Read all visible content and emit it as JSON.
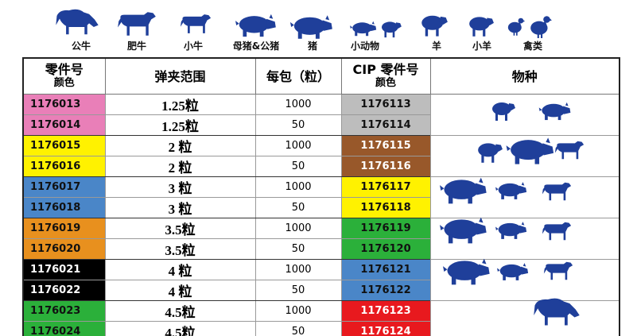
{
  "animals": [
    "公牛",
    "肥牛",
    "小牛",
    "母猪&公猪",
    "猪",
    "小动物",
    "羊",
    "小羊",
    "禽类"
  ],
  "table": {
    "headers": {
      "part": "零件号",
      "part_color": "颜色",
      "range": "弹夹范围",
      "pack": "每包（粒）",
      "cip": "CIP 零件号",
      "cip_color": "颜色",
      "species": "物种"
    },
    "rows": [
      {
        "part": "1176013",
        "color": "#e97fb8",
        "range": "1.25粒",
        "pack": 1000,
        "cip": "1176113",
        "cip_fill": "#bdbdbd"
      },
      {
        "part": "1176014",
        "color": "#e97fb8",
        "range": "1.25粒",
        "pack": 50,
        "cip": "1176114",
        "cip_fill": "#bdbdbd"
      },
      {
        "part": "1176015",
        "color": "#fff200",
        "range": "2 粒",
        "pack": 1000,
        "cip": "1176115",
        "cip_fill": "#98582a"
      },
      {
        "part": "1176016",
        "color": "#fff200",
        "range": "2 粒",
        "pack": 50,
        "cip": "1176116",
        "cip_fill": "#98582a"
      },
      {
        "part": "1176017",
        "color": "#4a86c8",
        "range": "3 粒",
        "pack": 1000,
        "cip": "1176117",
        "cip_fill": "#fff200"
      },
      {
        "part": "1176018",
        "color": "#4a86c8",
        "range": "3 粒",
        "pack": 50,
        "cip": "1176118",
        "cip_fill": "#fff200"
      },
      {
        "part": "1176019",
        "color": "#e8901e",
        "range": "3.5粒",
        "pack": 1000,
        "cip": "1176119",
        "cip_fill": "#2bb03a"
      },
      {
        "part": "1176020",
        "color": "#e8901e",
        "range": "3.5粒",
        "pack": 50,
        "cip": "1176120",
        "cip_fill": "#2bb03a"
      },
      {
        "part": "1176021",
        "color": "#000000",
        "range": "4 粒",
        "pack": 1000,
        "cip": "1176121",
        "cip_fill": "#4a86c8"
      },
      {
        "part": "1176022",
        "color": "#000000",
        "range": "4 粒",
        "pack": 50,
        "cip": "1176122",
        "cip_fill": "#4a86c8"
      },
      {
        "part": "1176023",
        "color": "#2bb03a",
        "range": "4.5粒",
        "pack": 1000,
        "cip": "1176123",
        "cip_fill": "#e8191e"
      },
      {
        "part": "1176024",
        "color": "#2bb03a",
        "range": "4.5粒",
        "pack": 50,
        "cip": "1176124",
        "cip_fill": "#e8191e"
      }
    ]
  }
}
